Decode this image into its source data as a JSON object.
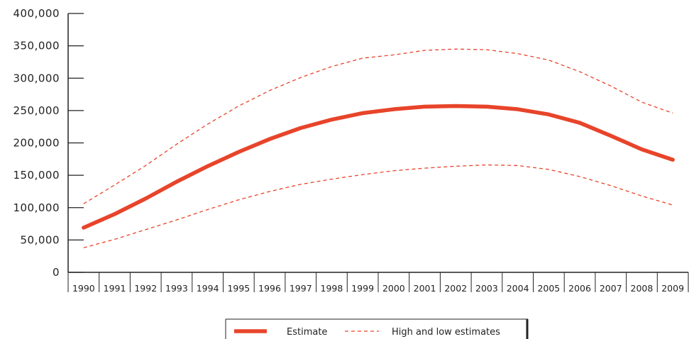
{
  "chart_data": {
    "type": "line",
    "title": "",
    "xlabel": "",
    "ylabel": "",
    "ylim": [
      0,
      400000
    ],
    "y_ticks": [
      "0",
      "50,000",
      "100,000",
      "150,000",
      "200,000",
      "250,000",
      "300,000",
      "350,000",
      "400,000"
    ],
    "y_tick_values": [
      0,
      50000,
      100000,
      150000,
      200000,
      250000,
      300000,
      350000,
      400000
    ],
    "x": [
      "1990",
      "1991",
      "1992",
      "1993",
      "1994",
      "1995",
      "1996",
      "1997",
      "1998",
      "1999",
      "2000",
      "2001",
      "2002",
      "2003",
      "2004",
      "2005",
      "2006",
      "2007",
      "2008",
      "2009"
    ],
    "series": [
      {
        "name": "Estimate",
        "style": "solid",
        "color": "#e8442a",
        "values": [
          69000,
          90000,
          114000,
          140000,
          164000,
          186000,
          206000,
          223000,
          236000,
          246000,
          252000,
          256000,
          257000,
          256000,
          252000,
          244000,
          231000,
          211000,
          190000,
          174000
        ]
      },
      {
        "name": "High and low estimates",
        "style": "dashed",
        "color": "#e8442a",
        "values": [
          106000,
          135000,
          165000,
          198000,
          229000,
          257000,
          281000,
          301000,
          318000,
          331000,
          336000,
          343000,
          345000,
          344000,
          338000,
          328000,
          310000,
          288000,
          263000,
          246000
        ]
      },
      {
        "name": "",
        "style": "dashed",
        "color": "#e8442a",
        "values": [
          38000,
          51000,
          66000,
          81000,
          97000,
          112000,
          125000,
          136000,
          144000,
          151000,
          157000,
          161000,
          164000,
          166000,
          165000,
          159000,
          148000,
          134000,
          118000,
          104000
        ]
      }
    ],
    "legend": {
      "placement": "bottom-center",
      "items": [
        {
          "label": "Estimate",
          "style": "solid"
        },
        {
          "label": "High and low estimates",
          "style": "dashed"
        }
      ]
    },
    "grid": false
  }
}
